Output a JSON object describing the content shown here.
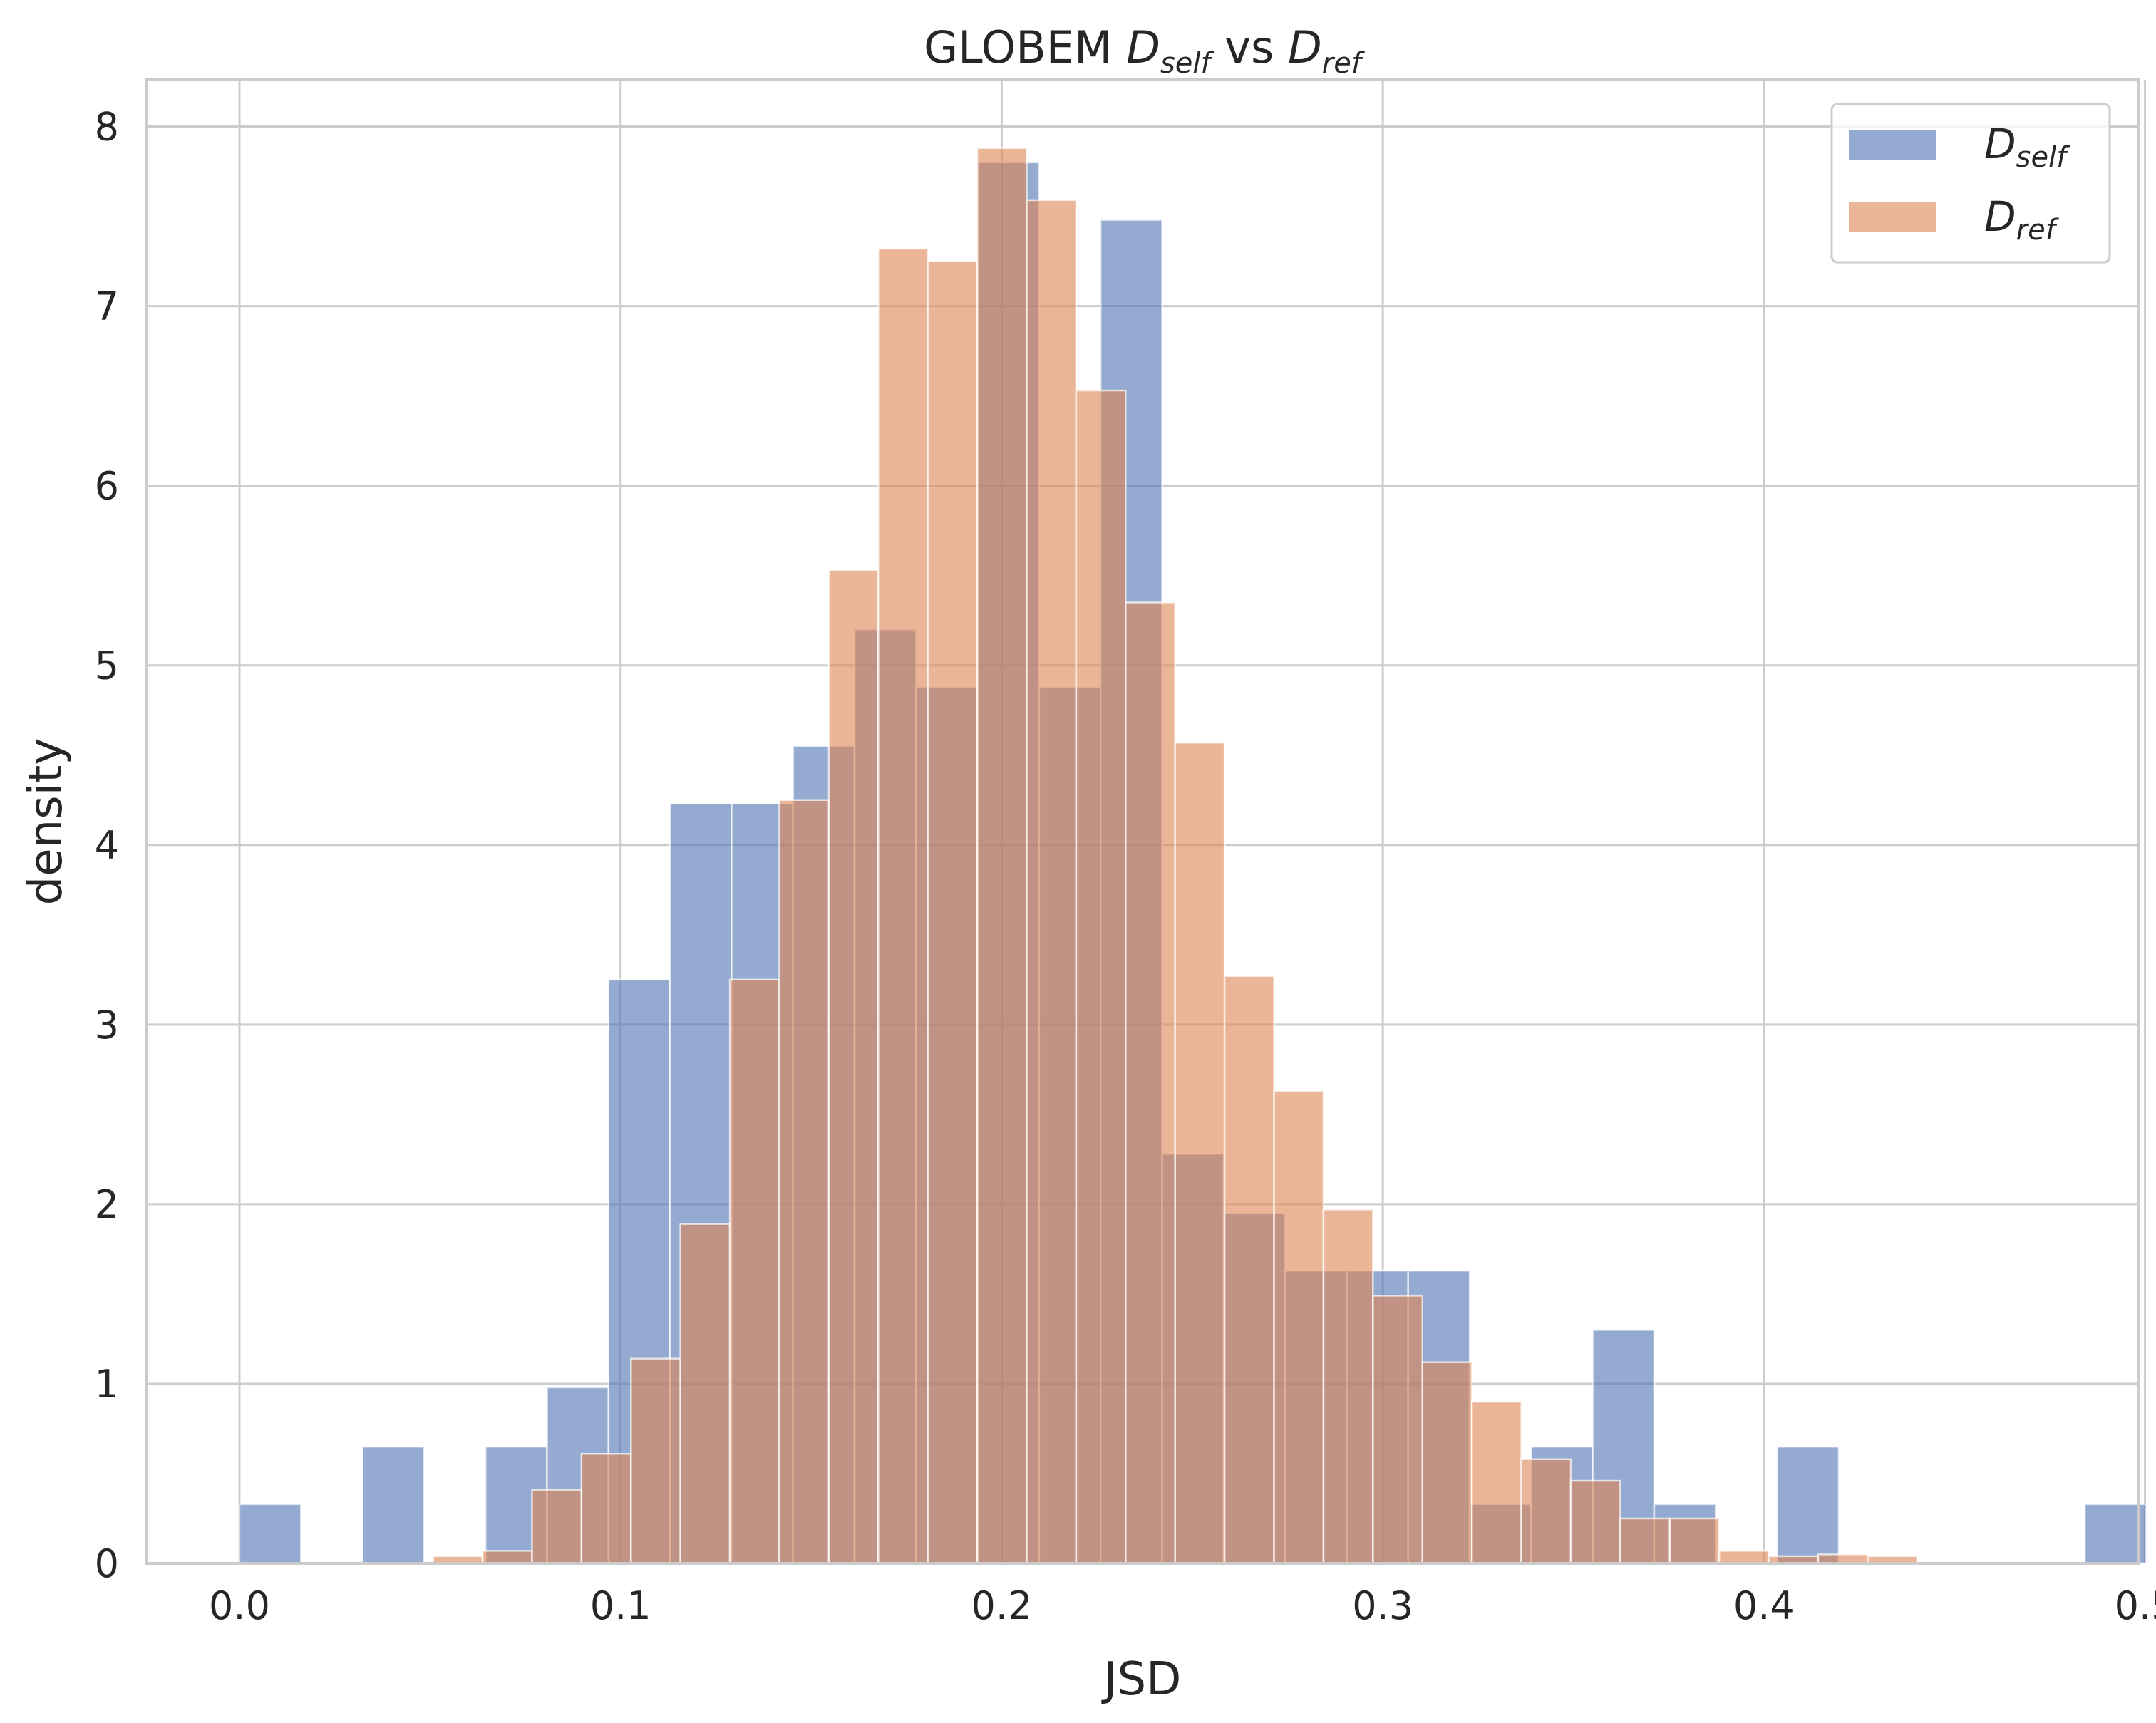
{
  "chart_data": {
    "type": "bar",
    "title": {
      "prefix": "GLOBEM ",
      "sym1": "D",
      "sub1": "self",
      "mid": " vs ",
      "sym2": "D",
      "sub2": "ref"
    },
    "xlabel": "JSD",
    "ylabel": "density",
    "xlim": [
      -0.0245,
      0.4984
    ],
    "ylim": [
      0,
      8.26
    ],
    "xticks": [
      0.0,
      0.1,
      0.2,
      0.3,
      0.4,
      0.5
    ],
    "xtick_labels": [
      "0.0",
      "0.1",
      "0.2",
      "0.3",
      "0.4",
      "0.5"
    ],
    "yticks": [
      0,
      1,
      2,
      3,
      4,
      5,
      6,
      7,
      8
    ],
    "ytick_labels": [
      "0",
      "1",
      "2",
      "3",
      "4",
      "5",
      "6",
      "7",
      "8"
    ],
    "grid": true,
    "legend": "top-right",
    "series": [
      {
        "name_symbol": "D",
        "name_sub": "self",
        "color": "#4c72b0",
        "opacity": 0.6,
        "bin_start": 0.0,
        "bin_width": 0.01614,
        "values": [
          0.33,
          0.0,
          0.65,
          0.0,
          0.65,
          0.98,
          3.25,
          4.23,
          4.23,
          4.55,
          5.2,
          4.88,
          7.8,
          4.88,
          7.48,
          2.28,
          1.95,
          1.63,
          1.63,
          1.63,
          0.33,
          0.65,
          1.3,
          0.33,
          0.0,
          0.65,
          0.0,
          0.0,
          0.0,
          0.0,
          0.33
        ]
      },
      {
        "name_symbol": "D",
        "name_sub": "ref",
        "color": "#dd8452",
        "opacity": 0.6,
        "bin_start": 0.0508,
        "bin_width": 0.01298,
        "values": [
          0.04,
          0.07,
          0.41,
          0.61,
          1.14,
          1.89,
          3.25,
          4.25,
          5.53,
          7.32,
          7.25,
          7.88,
          7.59,
          6.53,
          5.35,
          4.57,
          3.27,
          2.63,
          1.97,
          1.49,
          1.12,
          0.9,
          0.58,
          0.46,
          0.25,
          0.25,
          0.07,
          0.04,
          0.05,
          0.04
        ]
      }
    ]
  }
}
